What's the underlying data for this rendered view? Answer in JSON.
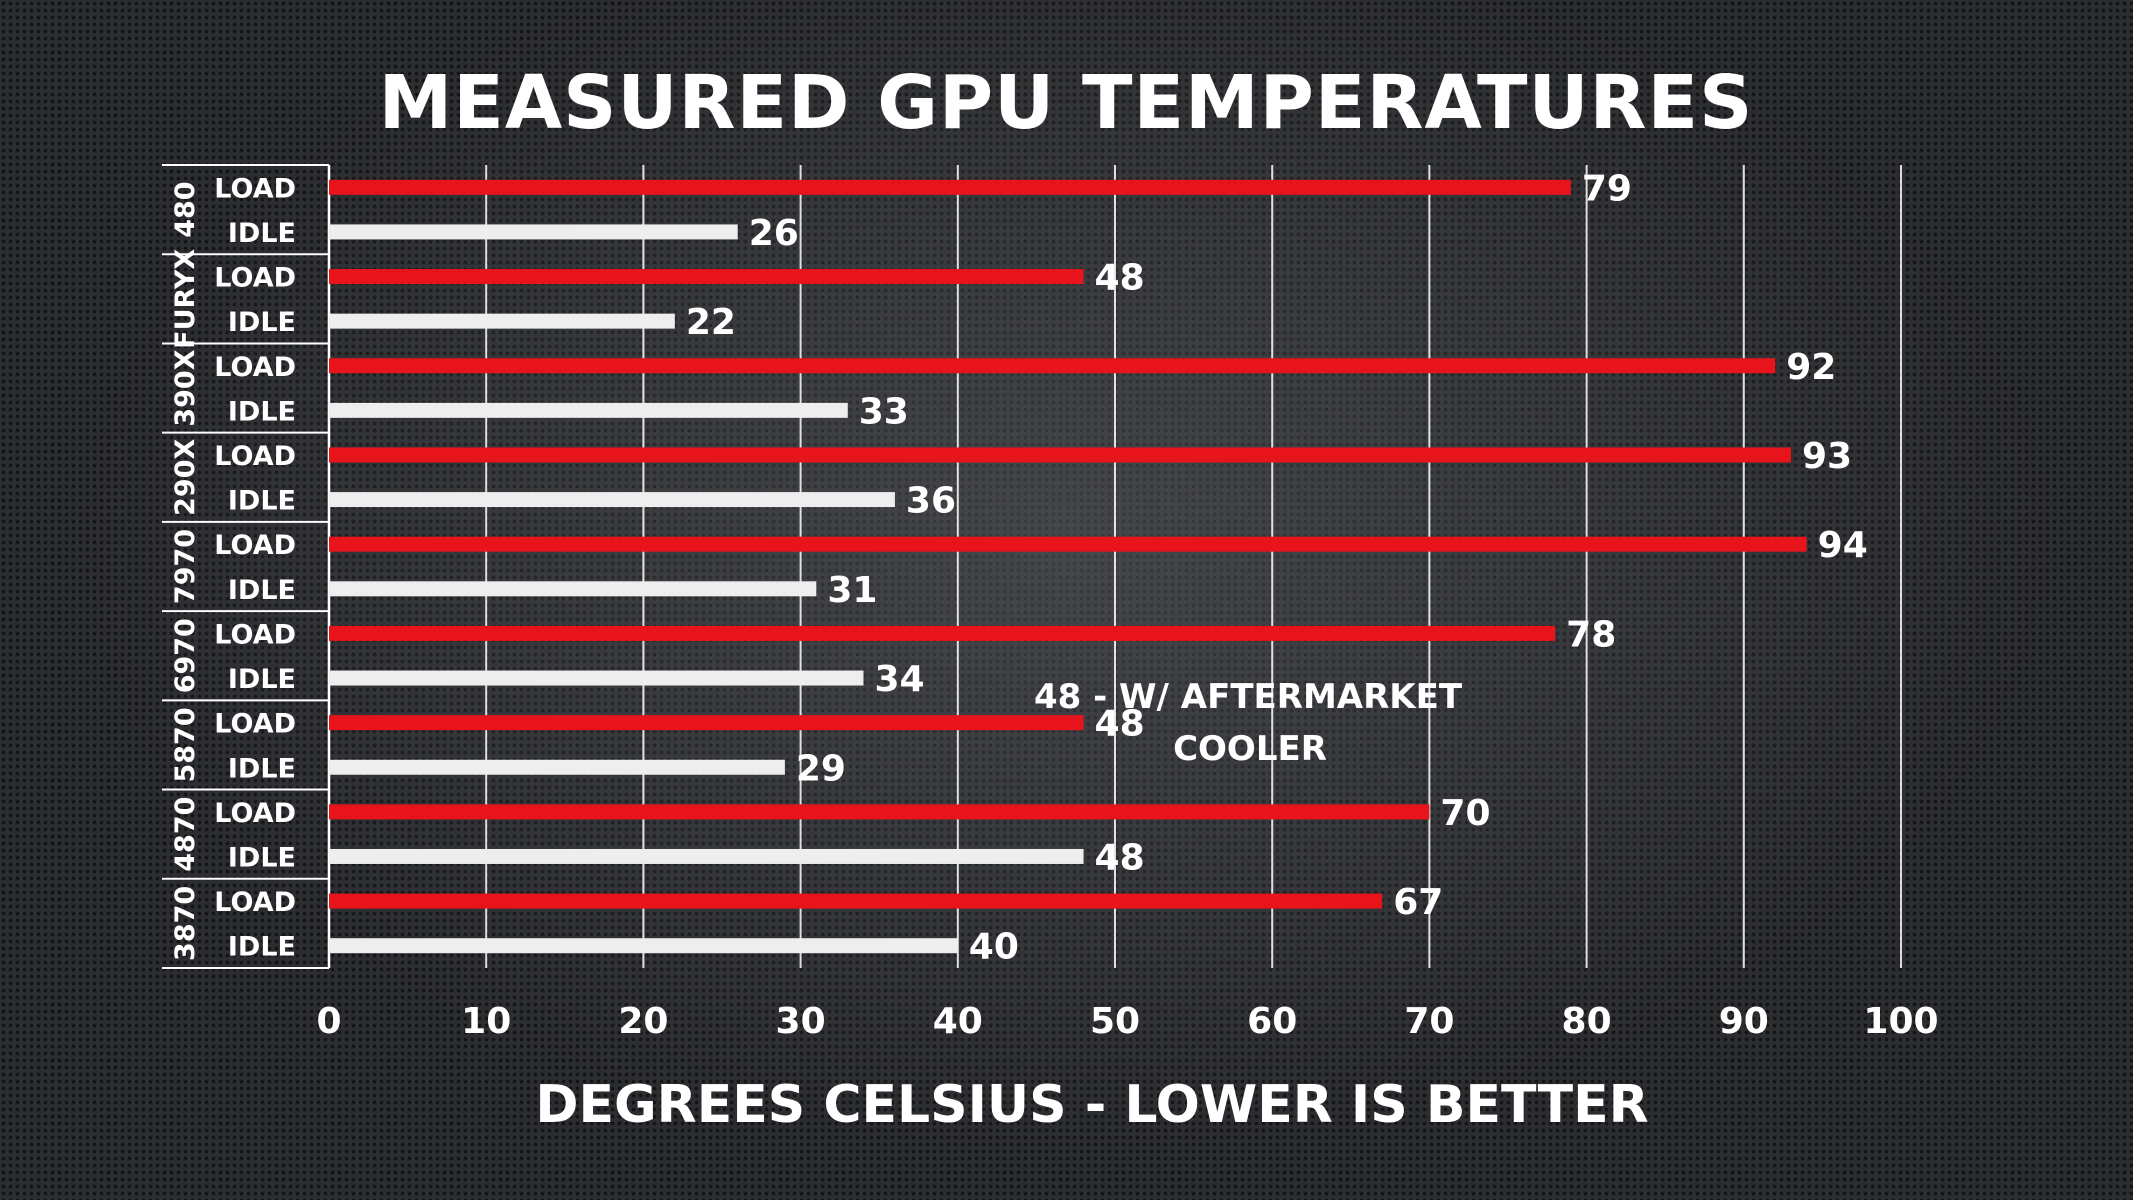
{
  "chart_data": {
    "type": "bar",
    "orientation": "horizontal",
    "title": "MEASURED GPU TEMPERATURES",
    "xlabel": "DEGREES CELSIUS - LOWER IS BETTER",
    "ylabel": "",
    "xlim": [
      0,
      100
    ],
    "ticks": [
      0,
      10,
      20,
      30,
      40,
      50,
      60,
      70,
      80,
      90,
      100
    ],
    "grid": true,
    "categories": [
      "480",
      "FURYX",
      "390X",
      "290X",
      "7970",
      "6970",
      "5870",
      "4870",
      "3870"
    ],
    "series": [
      {
        "name": "LOAD",
        "color": "#e8141b",
        "values": [
          79,
          48,
          92,
          93,
          94,
          78,
          48,
          70,
          67
        ]
      },
      {
        "name": "IDLE",
        "color": "#eeeeee",
        "values": [
          26,
          22,
          33,
          36,
          31,
          34,
          29,
          48,
          40
        ]
      }
    ],
    "annotation": {
      "lines": [
        "48 - W/ AFTERMARKET",
        "COOLER"
      ],
      "category": "5870"
    }
  }
}
